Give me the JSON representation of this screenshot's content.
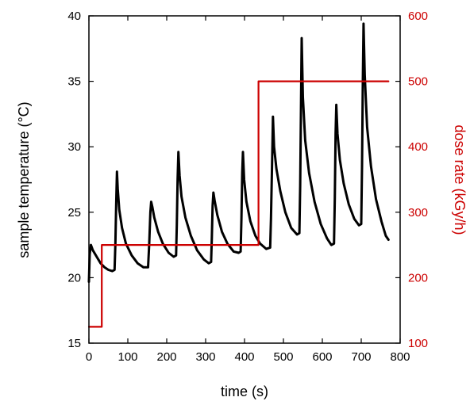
{
  "chart_data": {
    "type": "line",
    "title": "",
    "xlabel": "time (s)",
    "ylabel_left": "sample temperature (°C)",
    "ylabel_right": "dose rate (kGy/h)",
    "xlim": [
      0,
      800
    ],
    "ylim_left": [
      15,
      40
    ],
    "ylim_right": [
      100,
      600
    ],
    "x_ticks": [
      0,
      100,
      200,
      300,
      400,
      500,
      600,
      700,
      800
    ],
    "y_left_ticks": [
      15,
      20,
      25,
      30,
      35,
      40
    ],
    "y_right_ticks": [
      100,
      200,
      300,
      400,
      500,
      600
    ],
    "grid": false,
    "legend": "none",
    "colors": {
      "temperature": "#000000",
      "dose_rate": "#cc0000",
      "right_axis": "#cc0000",
      "frame": "#000000"
    },
    "series": [
      {
        "axis": "left",
        "color": "#000000",
        "points": [
          [
            0,
            19.7
          ],
          [
            2,
            21.8
          ],
          [
            5,
            22.5
          ],
          [
            10,
            22.1
          ],
          [
            20,
            21.6
          ],
          [
            30,
            21.1
          ],
          [
            40,
            20.8
          ],
          [
            50,
            20.6
          ],
          [
            60,
            20.5
          ],
          [
            66,
            20.6
          ],
          [
            68,
            22.5
          ],
          [
            70,
            25.5
          ],
          [
            72,
            28.1
          ],
          [
            74,
            26.8
          ],
          [
            78,
            25.2
          ],
          [
            85,
            23.8
          ],
          [
            95,
            22.6
          ],
          [
            110,
            21.7
          ],
          [
            125,
            21.1
          ],
          [
            140,
            20.8
          ],
          [
            152,
            20.8
          ],
          [
            155,
            22.5
          ],
          [
            158,
            25.0
          ],
          [
            160,
            25.8
          ],
          [
            163,
            25.4
          ],
          [
            168,
            24.6
          ],
          [
            178,
            23.5
          ],
          [
            190,
            22.6
          ],
          [
            205,
            21.9
          ],
          [
            218,
            21.6
          ],
          [
            224,
            21.7
          ],
          [
            226,
            24.0
          ],
          [
            228,
            27.5
          ],
          [
            230,
            29.6
          ],
          [
            233,
            27.8
          ],
          [
            238,
            26.2
          ],
          [
            248,
            24.6
          ],
          [
            262,
            23.2
          ],
          [
            278,
            22.1
          ],
          [
            295,
            21.4
          ],
          [
            308,
            21.1
          ],
          [
            314,
            21.2
          ],
          [
            316,
            23.0
          ],
          [
            318,
            25.5
          ],
          [
            320,
            26.5
          ],
          [
            323,
            25.9
          ],
          [
            330,
            24.8
          ],
          [
            342,
            23.5
          ],
          [
            356,
            22.6
          ],
          [
            372,
            22.0
          ],
          [
            385,
            21.9
          ],
          [
            390,
            22.0
          ],
          [
            392,
            24.5
          ],
          [
            394,
            28.0
          ],
          [
            396,
            29.6
          ],
          [
            399,
            27.5
          ],
          [
            405,
            25.8
          ],
          [
            415,
            24.3
          ],
          [
            428,
            23.2
          ],
          [
            440,
            22.6
          ],
          [
            456,
            22.2
          ],
          [
            466,
            22.3
          ],
          [
            468,
            24.5
          ],
          [
            471,
            29.0
          ],
          [
            473,
            32.3
          ],
          [
            476,
            30.0
          ],
          [
            482,
            28.3
          ],
          [
            492,
            26.6
          ],
          [
            505,
            25.0
          ],
          [
            520,
            23.8
          ],
          [
            535,
            23.3
          ],
          [
            541,
            23.4
          ],
          [
            543,
            27.0
          ],
          [
            545,
            33.0
          ],
          [
            547,
            38.3
          ],
          [
            550,
            33.8
          ],
          [
            556,
            30.5
          ],
          [
            566,
            28.0
          ],
          [
            580,
            25.8
          ],
          [
            596,
            24.1
          ],
          [
            612,
            23.0
          ],
          [
            623,
            22.5
          ],
          [
            630,
            22.6
          ],
          [
            632,
            26.0
          ],
          [
            634,
            31.0
          ],
          [
            636,
            33.2
          ],
          [
            639,
            31.0
          ],
          [
            645,
            29.0
          ],
          [
            655,
            27.2
          ],
          [
            668,
            25.6
          ],
          [
            682,
            24.5
          ],
          [
            694,
            24.0
          ],
          [
            700,
            24.1
          ],
          [
            702,
            28.5
          ],
          [
            704,
            35.0
          ],
          [
            706,
            39.4
          ],
          [
            709,
            35.5
          ],
          [
            715,
            31.5
          ],
          [
            725,
            28.5
          ],
          [
            738,
            26.0
          ],
          [
            752,
            24.3
          ],
          [
            763,
            23.2
          ],
          [
            770,
            22.9
          ]
        ]
      },
      {
        "axis": "right",
        "color": "#cc0000",
        "points": [
          [
            0,
            125
          ],
          [
            33,
            125
          ],
          [
            33,
            250
          ],
          [
            436,
            250
          ],
          [
            436,
            500
          ],
          [
            770,
            500
          ]
        ]
      }
    ]
  }
}
